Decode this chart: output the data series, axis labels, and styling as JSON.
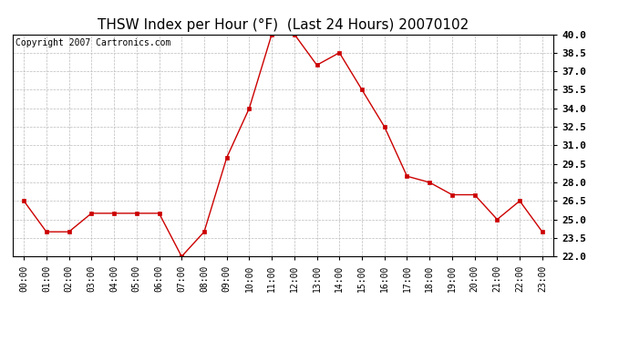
{
  "title": "THSW Index per Hour (°F)  (Last 24 Hours) 20070102",
  "copyright": "Copyright 2007 Cartronics.com",
  "hours": [
    "00:00",
    "01:00",
    "02:00",
    "03:00",
    "04:00",
    "05:00",
    "06:00",
    "07:00",
    "08:00",
    "09:00",
    "10:00",
    "11:00",
    "12:00",
    "13:00",
    "14:00",
    "15:00",
    "16:00",
    "17:00",
    "18:00",
    "19:00",
    "20:00",
    "21:00",
    "22:00",
    "23:00"
  ],
  "values": [
    26.5,
    24.0,
    24.0,
    25.5,
    25.5,
    25.5,
    25.5,
    22.0,
    24.0,
    30.0,
    34.0,
    40.0,
    40.0,
    37.5,
    38.5,
    35.5,
    32.5,
    28.5,
    28.0,
    27.0,
    27.0,
    25.0,
    26.5,
    24.0
  ],
  "line_color": "#cc0000",
  "marker_color": "#cc0000",
  "bg_color": "#ffffff",
  "plot_bg_color": "#ffffff",
  "grid_color": "#bbbbbb",
  "ylim": [
    22.0,
    40.0
  ],
  "ytick_min": 22.0,
  "ytick_max": 40.0,
  "ytick_step": 1.5,
  "title_fontsize": 11,
  "copyright_fontsize": 7,
  "tick_fontsize": 8,
  "xtick_fontsize": 7
}
